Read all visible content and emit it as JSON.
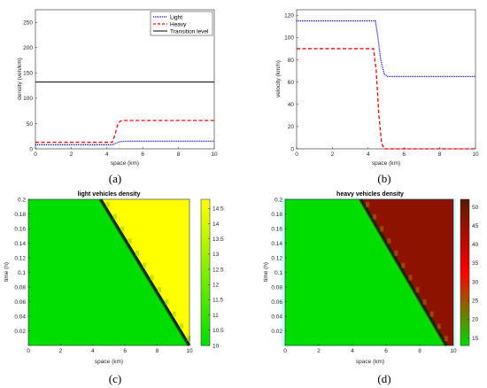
{
  "chart_data": [
    {
      "panel": "(a)",
      "type": "line",
      "xlabel": "space (km)",
      "ylabel": "density (veh/km)",
      "xlim": [
        0,
        10
      ],
      "ylim": [
        0,
        275
      ],
      "xticks": [
        "0",
        "2",
        "4",
        "6",
        "8",
        "10"
      ],
      "yticks": [
        "0",
        "50",
        "100",
        "150",
        "200",
        "250"
      ],
      "legend_position": "top-right",
      "series": [
        {
          "name": "Light",
          "color": "#0000ff",
          "style": "dotted",
          "x": [
            0,
            4.3,
            4.5,
            4.7,
            5.0,
            10
          ],
          "y": [
            8,
            8,
            11,
            14,
            15,
            15
          ]
        },
        {
          "name": "Heavy",
          "color": "#ff0000",
          "style": "dashed",
          "x": [
            0,
            4.3,
            4.45,
            4.6,
            4.75,
            5.0,
            10
          ],
          "y": [
            13,
            13,
            28,
            48,
            55,
            56,
            56
          ]
        },
        {
          "name": "Transition level",
          "color": "#000000",
          "style": "solid",
          "x": [
            0,
            10
          ],
          "y": [
            132,
            132
          ]
        }
      ]
    },
    {
      "panel": "(b)",
      "type": "line",
      "xlabel": "space (km)",
      "ylabel": "velocity (km/h)",
      "xlim": [
        0,
        10
      ],
      "ylim": [
        0,
        125
      ],
      "xticks": [
        "0",
        "2",
        "4",
        "6",
        "8",
        "10"
      ],
      "yticks": [
        "0",
        "20",
        "40",
        "60",
        "80",
        "100",
        "120"
      ],
      "series": [
        {
          "color": "#0000ff",
          "style": "dotted",
          "x": [
            0,
            4.4,
            4.55,
            4.7,
            4.9,
            5.1,
            10
          ],
          "y": [
            115,
            115,
            100,
            80,
            67,
            65,
            65
          ]
        },
        {
          "color": "#ff0000",
          "style": "dashed",
          "x": [
            0,
            4.3,
            4.45,
            4.6,
            4.75,
            4.9,
            10
          ],
          "y": [
            90,
            90,
            70,
            30,
            5,
            0,
            0
          ]
        }
      ]
    },
    {
      "panel": "(c)",
      "type": "heatmap",
      "title": "light vehicles density",
      "xlabel": "space (km)",
      "ylabel": "time (h)",
      "xlim": [
        0,
        10
      ],
      "ylim": [
        0,
        0.2
      ],
      "xticks": [
        "0",
        "2",
        "4",
        "6",
        "8",
        "10"
      ],
      "yticks": [
        "0.02",
        "0.04",
        "0.06",
        "0.08",
        "0.1",
        "0.12",
        "0.14",
        "0.16",
        "0.18",
        "0.2"
      ],
      "colorbar_ticks": [
        "10",
        "10.5",
        "11",
        "11.5",
        "12",
        "12.5",
        "13",
        "13.5",
        "14",
        "14.5"
      ],
      "colorbar_range": [
        10,
        14.8
      ],
      "colormap": [
        "#00dd00",
        "#ffff00"
      ],
      "regions": {
        "upstream_value": 10,
        "downstream_value": 14.8
      },
      "boundary": {
        "x_at_t_max": 4.5,
        "x_at_t_zero": 10
      }
    },
    {
      "panel": "(d)",
      "type": "heatmap",
      "title": "heavy vehicles density",
      "xlabel": "space (km)",
      "ylabel": "time (h)",
      "xlim": [
        0,
        10
      ],
      "ylim": [
        0,
        0.2
      ],
      "xticks": [
        "0",
        "2",
        "4",
        "6",
        "8",
        "10"
      ],
      "yticks": [
        "0.02",
        "0.04",
        "0.06",
        "0.08",
        "0.1",
        "0.12",
        "0.14",
        "0.16",
        "0.18",
        "0.2"
      ],
      "colorbar_ticks": [
        "15",
        "20",
        "25",
        "30",
        "35",
        "40",
        "45",
        "50"
      ],
      "colorbar_range": [
        13,
        52
      ],
      "colormap": [
        "#00dd00",
        "#ff0000",
        "#5a1a00"
      ],
      "regions": {
        "upstream_value": 13,
        "downstream_value": 46
      },
      "boundary": {
        "x_at_t_max": 4.5,
        "x_at_t_zero": 9.6
      }
    }
  ],
  "captions": [
    "(a)",
    "(b)",
    "(c)",
    "(d)"
  ]
}
